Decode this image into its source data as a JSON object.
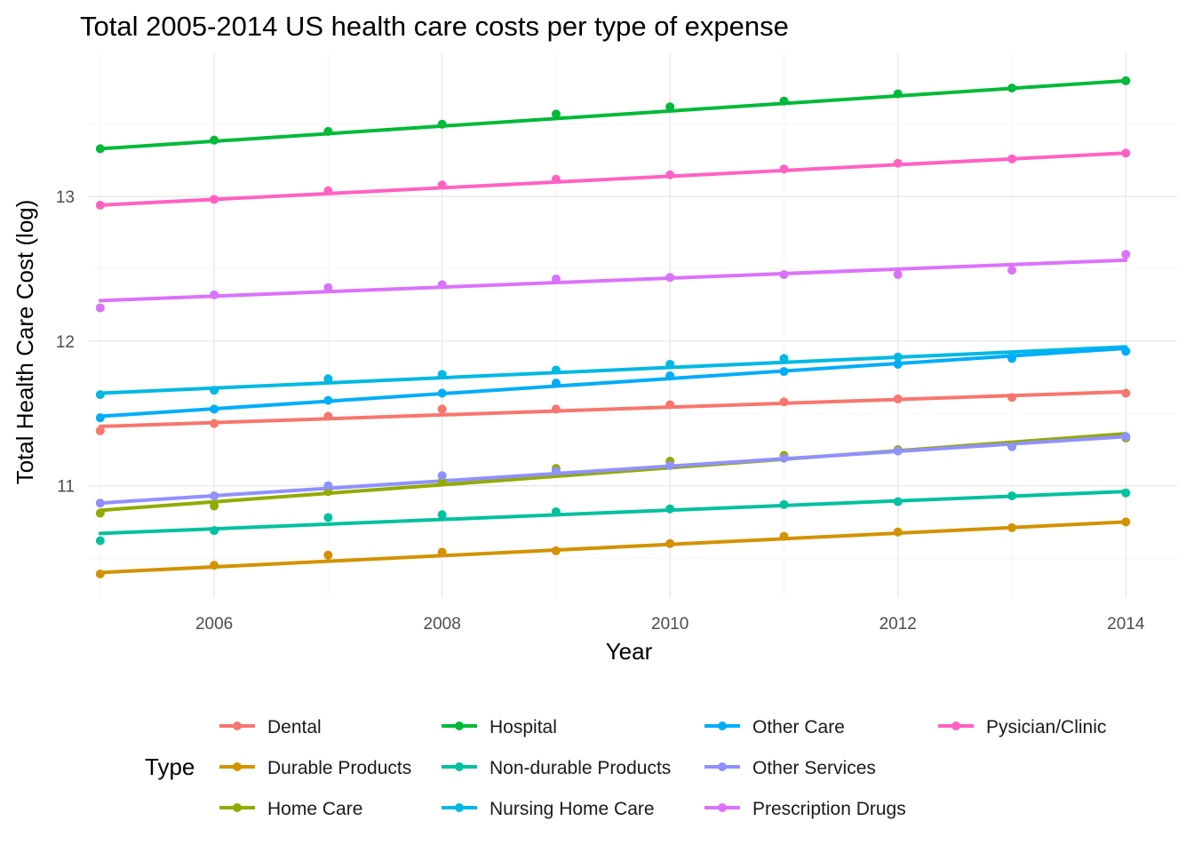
{
  "chart_data": {
    "type": "line",
    "title": "Total 2005-2014 US health care costs per type of expense",
    "xlabel": "Year",
    "ylabel": "Total Health Care Cost (log)",
    "xlim": [
      2004.9,
      2014.45
    ],
    "ylim": [
      10.23,
      13.99
    ],
    "x_ticks": [
      2006,
      2008,
      2010,
      2012,
      2014
    ],
    "y_ticks": [
      11,
      12,
      13
    ],
    "grid": true,
    "legend": {
      "title": "Type",
      "placement": "bottom"
    },
    "x": [
      2005,
      2006,
      2007,
      2008,
      2009,
      2010,
      2011,
      2012,
      2013,
      2014
    ],
    "series": [
      {
        "name": "Dental",
        "color": "#F8766D",
        "points": [
          11.38,
          11.43,
          11.48,
          11.53,
          11.53,
          11.56,
          11.58,
          11.6,
          11.61,
          11.64
        ],
        "fit": [
          11.41,
          11.65
        ]
      },
      {
        "name": "Durable Products",
        "color": "#D39200",
        "points": [
          10.39,
          10.45,
          10.52,
          10.54,
          10.55,
          10.6,
          10.65,
          10.68,
          10.71,
          10.75
        ],
        "fit": [
          10.4,
          10.75
        ]
      },
      {
        "name": "Home Care",
        "color": "#93AA00",
        "points": [
          10.81,
          10.86,
          10.96,
          11.03,
          11.12,
          11.17,
          11.21,
          11.25,
          11.28,
          11.33
        ],
        "fit": [
          10.83,
          11.36
        ]
      },
      {
        "name": "Hospital",
        "color": "#00BA38",
        "points": [
          13.33,
          13.39,
          13.45,
          13.5,
          13.57,
          13.62,
          13.66,
          13.71,
          13.75,
          13.8
        ],
        "fit": [
          13.33,
          13.8
        ]
      },
      {
        "name": "Non-durable Products",
        "color": "#00C19F",
        "points": [
          10.62,
          10.69,
          10.78,
          10.8,
          10.82,
          10.84,
          10.87,
          10.89,
          10.93,
          10.95
        ],
        "fit": [
          10.67,
          10.96
        ]
      },
      {
        "name": "Nursing Home Care",
        "color": "#00B9E3",
        "points": [
          11.63,
          11.66,
          11.74,
          11.77,
          11.8,
          11.84,
          11.88,
          11.89,
          11.89,
          11.93
        ],
        "fit": [
          11.64,
          11.96
        ]
      },
      {
        "name": "Other Care",
        "color": "#00ADFA",
        "points": [
          11.47,
          11.53,
          11.59,
          11.64,
          11.71,
          11.76,
          11.79,
          11.84,
          11.88,
          11.93
        ],
        "fit": [
          11.48,
          11.95
        ]
      },
      {
        "name": "Other Services",
        "color": "#8F91FF",
        "points": [
          10.88,
          10.93,
          11.0,
          11.07,
          11.1,
          11.14,
          11.19,
          11.24,
          11.27,
          11.34
        ],
        "fit": [
          10.88,
          11.34
        ]
      },
      {
        "name": "Prescription Drugs",
        "color": "#DB72FB",
        "points": [
          12.23,
          12.32,
          12.37,
          12.39,
          12.43,
          12.44,
          12.46,
          12.46,
          12.49,
          12.6
        ],
        "fit": [
          12.28,
          12.56
        ]
      },
      {
        "name": "Pysician/Clinic",
        "color": "#FF61C3",
        "points": [
          12.94,
          12.98,
          13.04,
          13.08,
          13.12,
          13.15,
          13.19,
          13.23,
          13.26,
          13.3
        ],
        "fit": [
          12.94,
          13.3
        ]
      }
    ]
  }
}
